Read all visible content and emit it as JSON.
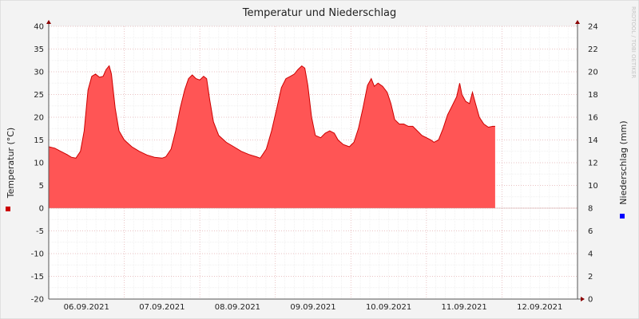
{
  "chart_data": {
    "type": "area",
    "title": "Temperatur und Niederschlag",
    "ylabel_left": "Temperatur (°C)",
    "ylabel_right": "Niederschlag (mm)",
    "watermark": "RRDTOOL / TOBI OETIKER",
    "ylim_left": [
      -20,
      40
    ],
    "ylim_right": [
      0,
      24
    ],
    "yticks_left": [
      40,
      35,
      30,
      25,
      20,
      15,
      10,
      5,
      0,
      -5,
      -10,
      -15,
      -20
    ],
    "yticks_right": [
      24,
      22,
      20,
      18,
      16,
      14,
      12,
      10,
      8,
      6,
      4,
      2,
      0
    ],
    "xlim_day": [
      0,
      7
    ],
    "xticks": [
      {
        "day": 0.5,
        "label": "06.09.2021"
      },
      {
        "day": 1.5,
        "label": "07.09.2021"
      },
      {
        "day": 2.5,
        "label": "08.09.2021"
      },
      {
        "day": 3.5,
        "label": "09.09.2021"
      },
      {
        "day": 4.5,
        "label": "10.09.2021"
      },
      {
        "day": 5.5,
        "label": "11.09.2021"
      },
      {
        "day": 6.5,
        "label": "12.09.2021"
      }
    ],
    "grid": true,
    "series": [
      {
        "color": "#ff5555",
        "line_color": "#cc0000",
        "axis": "left",
        "points": [
          [
            0.0,
            13.5
          ],
          [
            0.08,
            13.2
          ],
          [
            0.16,
            12.5
          ],
          [
            0.24,
            11.8
          ],
          [
            0.3,
            11.2
          ],
          [
            0.36,
            11.0
          ],
          [
            0.42,
            12.5
          ],
          [
            0.47,
            17.0
          ],
          [
            0.52,
            26.0
          ],
          [
            0.57,
            29.0
          ],
          [
            0.62,
            29.5
          ],
          [
            0.67,
            28.8
          ],
          [
            0.72,
            29.0
          ],
          [
            0.76,
            30.5
          ],
          [
            0.8,
            31.3
          ],
          [
            0.83,
            29.5
          ],
          [
            0.88,
            22.0
          ],
          [
            0.93,
            17.0
          ],
          [
            1.0,
            15.0
          ],
          [
            1.1,
            13.5
          ],
          [
            1.2,
            12.5
          ],
          [
            1.3,
            11.7
          ],
          [
            1.4,
            11.2
          ],
          [
            1.5,
            11.0
          ],
          [
            1.55,
            11.3
          ],
          [
            1.62,
            13.0
          ],
          [
            1.68,
            17.0
          ],
          [
            1.74,
            22.0
          ],
          [
            1.8,
            26.0
          ],
          [
            1.85,
            28.5
          ],
          [
            1.9,
            29.3
          ],
          [
            1.95,
            28.5
          ],
          [
            2.0,
            28.2
          ],
          [
            2.05,
            29.0
          ],
          [
            2.09,
            28.5
          ],
          [
            2.13,
            24.0
          ],
          [
            2.18,
            19.0
          ],
          [
            2.25,
            16.0
          ],
          [
            2.35,
            14.5
          ],
          [
            2.45,
            13.5
          ],
          [
            2.55,
            12.5
          ],
          [
            2.65,
            11.8
          ],
          [
            2.75,
            11.3
          ],
          [
            2.8,
            11.0
          ],
          [
            2.88,
            13.0
          ],
          [
            2.95,
            17.0
          ],
          [
            3.02,
            22.0
          ],
          [
            3.08,
            26.5
          ],
          [
            3.14,
            28.5
          ],
          [
            3.2,
            29.0
          ],
          [
            3.25,
            29.5
          ],
          [
            3.3,
            30.5
          ],
          [
            3.35,
            31.3
          ],
          [
            3.39,
            30.8
          ],
          [
            3.43,
            27.0
          ],
          [
            3.48,
            20.0
          ],
          [
            3.53,
            16.0
          ],
          [
            3.6,
            15.5
          ],
          [
            3.66,
            16.5
          ],
          [
            3.72,
            17.0
          ],
          [
            3.78,
            16.5
          ],
          [
            3.83,
            15.0
          ],
          [
            3.9,
            14.0
          ],
          [
            3.98,
            13.5
          ],
          [
            4.04,
            14.5
          ],
          [
            4.1,
            17.5
          ],
          [
            4.16,
            22.0
          ],
          [
            4.22,
            27.0
          ],
          [
            4.27,
            28.5
          ],
          [
            4.31,
            26.8
          ],
          [
            4.36,
            27.5
          ],
          [
            4.42,
            26.8
          ],
          [
            4.48,
            25.5
          ],
          [
            4.53,
            23.0
          ],
          [
            4.58,
            19.5
          ],
          [
            4.64,
            18.5
          ],
          [
            4.7,
            18.5
          ],
          [
            4.76,
            18.0
          ],
          [
            4.82,
            18.0
          ],
          [
            4.88,
            17.0
          ],
          [
            4.94,
            16.0
          ],
          [
            5.0,
            15.5
          ],
          [
            5.06,
            15.0
          ],
          [
            5.1,
            14.5
          ],
          [
            5.16,
            15.0
          ],
          [
            5.22,
            17.5
          ],
          [
            5.28,
            20.5
          ],
          [
            5.34,
            22.5
          ],
          [
            5.4,
            24.5
          ],
          [
            5.44,
            27.5
          ],
          [
            5.47,
            25.0
          ],
          [
            5.52,
            23.5
          ],
          [
            5.57,
            23.0
          ],
          [
            5.61,
            25.5
          ],
          [
            5.65,
            23.0
          ],
          [
            5.7,
            20.0
          ],
          [
            5.76,
            18.5
          ],
          [
            5.82,
            17.8
          ],
          [
            5.88,
            18.0
          ],
          [
            5.91,
            18.0
          ]
        ]
      },
      {
        "color": "#0000ff",
        "axis": "right",
        "points": []
      }
    ]
  }
}
